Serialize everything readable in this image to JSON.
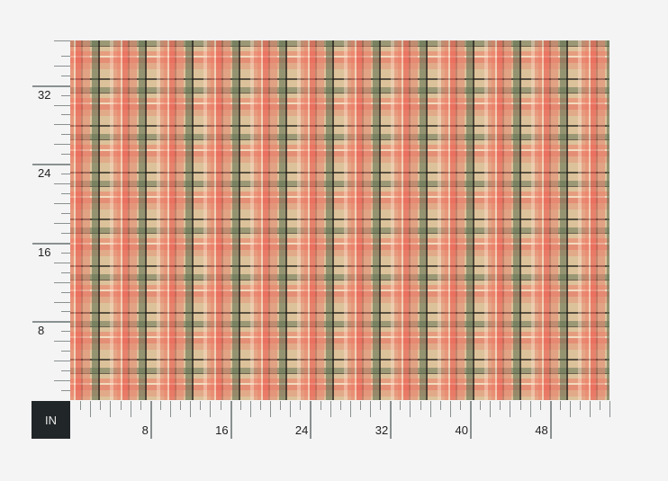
{
  "unit_label": "IN",
  "fabric": {
    "pattern": "plaid",
    "colors": {
      "base": "#dcc29a",
      "red": "#ee6a5c",
      "pink": "#f4a090",
      "green": "#7d8a6c",
      "dark": "#2a2a24"
    }
  },
  "ruler_horizontal": {
    "max": 54,
    "labels": [
      "8",
      "16",
      "24",
      "32",
      "40",
      "48"
    ]
  },
  "ruler_vertical": {
    "max": 36,
    "labels": [
      "8",
      "16",
      "24",
      "32"
    ]
  }
}
